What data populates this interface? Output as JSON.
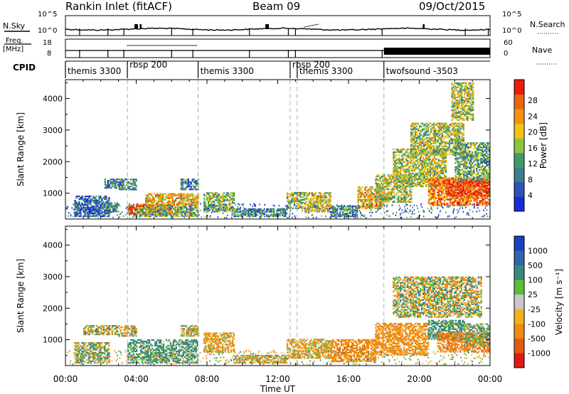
{
  "header": {
    "station": "Rankin Inlet (fitACF)",
    "beam": "Beam 09",
    "date": "09/Oct/2015"
  },
  "panel_nsky": {
    "left_label": "N.Sky",
    "right_label": "N.Search",
    "left_ticks": [
      "10^5",
      "10^0"
    ],
    "right_ticks": [
      "10^5",
      "10^0"
    ]
  },
  "panel_freq": {
    "left_label_top": "Freq.",
    "left_label_bottom": "[MHz]",
    "left_ticks": [
      "18",
      "8"
    ],
    "right_label": "Nave",
    "right_ticks": [
      "60",
      "0"
    ]
  },
  "panel_cpid": {
    "label": "CPID",
    "segments": [
      {
        "name": "themis 3300",
        "start_h": 0.0,
        "end_h": 3.5
      },
      {
        "name": "rbsp 200",
        "start_h": 3.5,
        "end_h": 7.5
      },
      {
        "name": "themis 3300",
        "start_h": 7.5,
        "end_h": 12.7
      },
      {
        "name": "rbsp 200",
        "start_h": 12.7,
        "end_h": 13.1
      },
      {
        "name": "themis 3300",
        "start_h": 13.1,
        "end_h": 18.0
      },
      {
        "name": "twofsound -3503",
        "start_h": 18.0,
        "end_h": 24.0
      }
    ]
  },
  "colorbars": {
    "power": {
      "label": "Power [dB]",
      "ticks": [
        "4",
        "8",
        "12",
        "16",
        "20",
        "24",
        "28"
      ],
      "colors": [
        "#1c2bd9",
        "#2e52b5",
        "#3b7d8d",
        "#3f9a6a",
        "#8cc63f",
        "#f2c418",
        "#f29411",
        "#ec6410",
        "#e81e0c"
      ]
    },
    "velocity": {
      "label": "Velocity [m s⁻¹]",
      "ticks": [
        "1000",
        "500",
        "100",
        "25",
        "-25",
        "-100",
        "-500",
        "-1000"
      ],
      "colors": [
        "#1c3fbf",
        "#2e66a8",
        "#3a8a7c",
        "#5fbf3a",
        "#c8c8c8",
        "#f3b21c",
        "#f08a12",
        "#e65a10",
        "#e01818"
      ]
    }
  },
  "axes": {
    "xlabel": "Time UT",
    "x_ticks": [
      "00:00",
      "04:00",
      "08:00",
      "12:00",
      "16:00",
      "20:00",
      "00:00"
    ],
    "ylabel": "Slant Range [km]",
    "y_ticks": [
      "1000",
      "2000",
      "3000",
      "4000"
    ]
  },
  "chart_data": [
    {
      "type": "heatmap",
      "name": "power",
      "xlabel": "Time UT",
      "ylabel": "Slant Range [km]",
      "colorbar_label": "Power [dB]",
      "xlim_hours": [
        0,
        24
      ],
      "ylim_km": [
        180,
        4600
      ],
      "clim": [
        0,
        30
      ],
      "mode_change_lines_h": [
        3.5,
        7.5,
        12.7,
        13.1,
        18.0
      ],
      "regions": [
        {
          "t0": 0.5,
          "t1": 2.5,
          "r0": 250,
          "r1": 900,
          "v": 6
        },
        {
          "t0": 2.0,
          "t1": 3.0,
          "r0": 400,
          "r1": 700,
          "v": 10
        },
        {
          "t0": 2.2,
          "t1": 3.2,
          "r0": 1150,
          "r1": 1450,
          "v": 9
        },
        {
          "t0": 3.0,
          "t1": 4.0,
          "r0": 1100,
          "r1": 1450,
          "v": 10
        },
        {
          "t0": 3.5,
          "t1": 6.0,
          "r0": 300,
          "r1": 650,
          "v": 26
        },
        {
          "t0": 4.5,
          "t1": 7.5,
          "r0": 550,
          "r1": 1000,
          "v": 20
        },
        {
          "t0": 4.0,
          "t1": 7.5,
          "r0": 250,
          "r1": 550,
          "v": 15
        },
        {
          "t0": 6.5,
          "t1": 7.5,
          "r0": 1100,
          "r1": 1450,
          "v": 9
        },
        {
          "t0": 7.8,
          "t1": 9.5,
          "r0": 400,
          "r1": 1000,
          "v": 14
        },
        {
          "t0": 9.5,
          "t1": 12.5,
          "r0": 250,
          "r1": 500,
          "v": 10
        },
        {
          "t0": 12.5,
          "t1": 13.5,
          "r0": 500,
          "r1": 1000,
          "v": 14
        },
        {
          "t0": 13.5,
          "t1": 15.0,
          "r0": 400,
          "r1": 1000,
          "v": 18
        },
        {
          "t0": 15.0,
          "t1": 16.5,
          "r0": 250,
          "r1": 600,
          "v": 10
        },
        {
          "t0": 16.5,
          "t1": 18.0,
          "r0": 500,
          "r1": 1200,
          "v": 20
        },
        {
          "t0": 17.5,
          "t1": 19.5,
          "r0": 700,
          "r1": 1600,
          "v": 15
        },
        {
          "t0": 18.5,
          "t1": 21.5,
          "r0": 1200,
          "r1": 2400,
          "v": 16
        },
        {
          "t0": 19.5,
          "t1": 22.5,
          "r0": 2200,
          "r1": 3200,
          "v": 15
        },
        {
          "t0": 20.5,
          "t1": 24.0,
          "r0": 600,
          "r1": 1500,
          "v": 24
        },
        {
          "t0": 21.5,
          "t1": 24.0,
          "r0": 900,
          "r1": 1400,
          "v": 28
        },
        {
          "t0": 22.0,
          "t1": 24.0,
          "r0": 1400,
          "r1": 2600,
          "v": 12
        },
        {
          "t0": 21.8,
          "t1": 23.0,
          "r0": 3300,
          "r1": 4500,
          "v": 16
        }
      ]
    },
    {
      "type": "heatmap",
      "name": "velocity",
      "xlabel": "Time UT",
      "ylabel": "Slant Range [km]",
      "colorbar_label": "Velocity [m s⁻¹]",
      "xlim_hours": [
        0,
        24
      ],
      "ylim_km": [
        180,
        4600
      ],
      "mode_change_lines_h": [
        3.5,
        7.5,
        12.7,
        13.1,
        18.0
      ],
      "regions": [
        {
          "t0": 0.5,
          "t1": 2.5,
          "r0": 250,
          "r1": 900,
          "v": 50
        },
        {
          "t0": 1.0,
          "t1": 3.0,
          "r0": 1150,
          "r1": 1450,
          "v": 0
        },
        {
          "t0": 3.0,
          "t1": 4.0,
          "r0": 1100,
          "r1": 1450,
          "v": 0
        },
        {
          "t0": 3.5,
          "t1": 7.5,
          "r0": 250,
          "r1": 1000,
          "v": 200
        },
        {
          "t0": 6.5,
          "t1": 7.5,
          "r0": 1100,
          "r1": 1450,
          "v": 0
        },
        {
          "t0": 7.8,
          "t1": 9.5,
          "r0": 600,
          "r1": 1200,
          "v": -150
        },
        {
          "t0": 9.5,
          "t1": 12.5,
          "r0": 250,
          "r1": 500,
          "v": -80
        },
        {
          "t0": 12.5,
          "t1": 15.0,
          "r0": 400,
          "r1": 1000,
          "v": -150
        },
        {
          "t0": 15.0,
          "t1": 17.5,
          "r0": 300,
          "r1": 1000,
          "v": -300
        },
        {
          "t0": 17.5,
          "t1": 20.5,
          "r0": 500,
          "r1": 1500,
          "v": -250
        },
        {
          "t0": 18.5,
          "t1": 23.5,
          "r0": 1700,
          "r1": 3000,
          "v": 0
        },
        {
          "t0": 20.5,
          "t1": 22.5,
          "r0": 1000,
          "r1": 1600,
          "v": 200
        },
        {
          "t0": 21.0,
          "t1": 24.0,
          "r0": 600,
          "r1": 1200,
          "v": -400
        },
        {
          "t0": 22.5,
          "t1": 24.0,
          "r0": 800,
          "r1": 1500,
          "v": 100
        }
      ]
    }
  ]
}
